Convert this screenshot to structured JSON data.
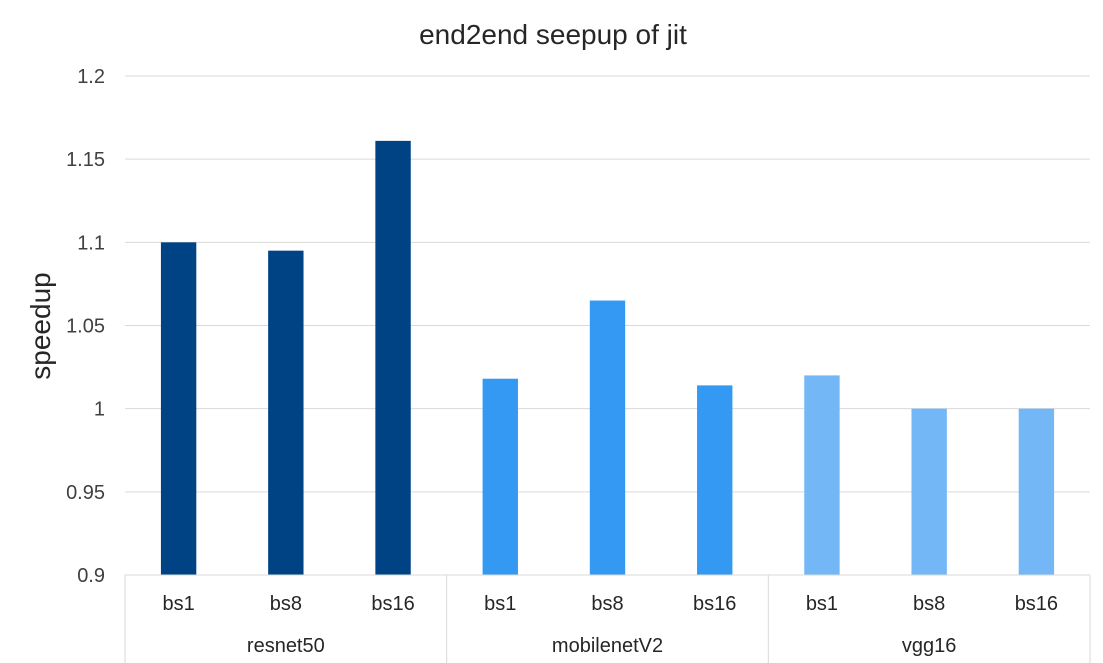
{
  "chart_data": {
    "type": "bar",
    "title": "end2end seepup of jit",
    "xlabel": "",
    "ylabel": "speedup",
    "ylim": [
      0.9,
      1.2
    ],
    "yticks": [
      "0.9",
      "0.95",
      "1",
      "1.05",
      "1.1",
      "1.15",
      "1.2"
    ],
    "grid": true,
    "legend": "none",
    "groups": [
      {
        "name": "resnet50",
        "color": "#004385",
        "categories": [
          "bs1",
          "bs8",
          "bs16"
        ],
        "values": [
          1.1,
          1.095,
          1.161
        ]
      },
      {
        "name": "mobilenetV2",
        "color": "#3399f3",
        "categories": [
          "bs1",
          "bs8",
          "bs16"
        ],
        "values": [
          1.018,
          1.065,
          1.014
        ]
      },
      {
        "name": "vgg16",
        "color": "#74b7f6",
        "categories": [
          "bs1",
          "bs8",
          "bs16"
        ],
        "values": [
          1.02,
          1.0,
          1.0
        ]
      }
    ]
  }
}
